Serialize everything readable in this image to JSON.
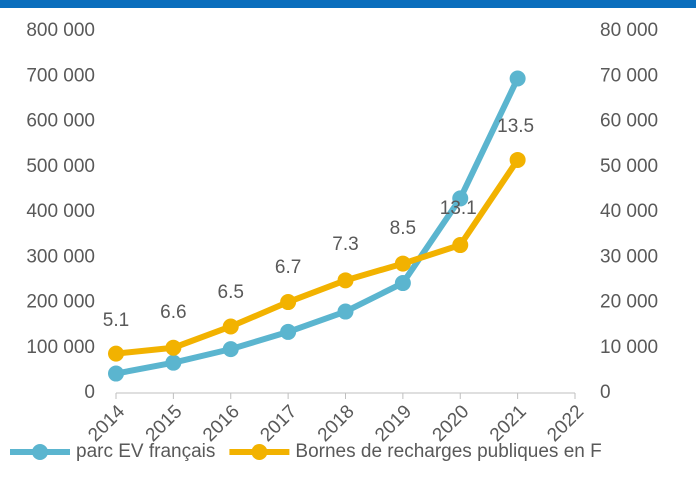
{
  "chart_data": {
    "type": "line",
    "categories": [
      "2014",
      "2015",
      "2016",
      "2017",
      "2018",
      "2019",
      "2020",
      "2021",
      "2022"
    ],
    "series": [
      {
        "name": "parc EV français",
        "color": "#5bb5cf",
        "values": [
          43000,
          67000,
          97000,
          135000,
          180000,
          243000,
          430000,
          695000,
          null
        ]
      },
      {
        "name": "Bornes de recharges publiques en F",
        "color": "#f2b200",
        "axis": "y2",
        "values": [
          8700,
          10000,
          14700,
          20100,
          24900,
          28600,
          32700,
          51500,
          null
        ]
      }
    ],
    "annotations": [
      "5.1",
      "6.6",
      "6.5",
      "6.7",
      "7.3",
      "8.5",
      "13.1",
      "13.5"
    ],
    "ylim": [
      0,
      800000
    ],
    "yticks": [
      0,
      {
        "value": 100000,
        "label": "100 000"
      },
      {
        "value": 200000,
        "label": "200 000"
      },
      {
        "value": 300000,
        "label": "300 000"
      },
      {
        "value": 400000,
        "label": "400 000"
      },
      {
        "value": 500000,
        "label": "500 000"
      },
      {
        "value": 600000,
        "label": "600 000"
      },
      {
        "value": 700000,
        "label": "700 000"
      },
      {
        "value": 800000,
        "label": "800 000"
      }
    ],
    "y2lim": [
      0,
      80000
    ],
    "y2ticks": [
      0,
      {
        "value": 10000,
        "label": "10 000"
      },
      {
        "value": 20000,
        "label": "20 000"
      },
      {
        "value": 30000,
        "label": "30 000"
      },
      {
        "value": 40000,
        "label": "40 000"
      },
      {
        "value": 50000,
        "label": "50 000"
      },
      {
        "value": 60000,
        "label": "60 000"
      },
      {
        "value": 70000,
        "label": "70 000"
      },
      {
        "value": 80000,
        "label": "80 000"
      }
    ],
    "grid": false,
    "legend": "bottom"
  }
}
